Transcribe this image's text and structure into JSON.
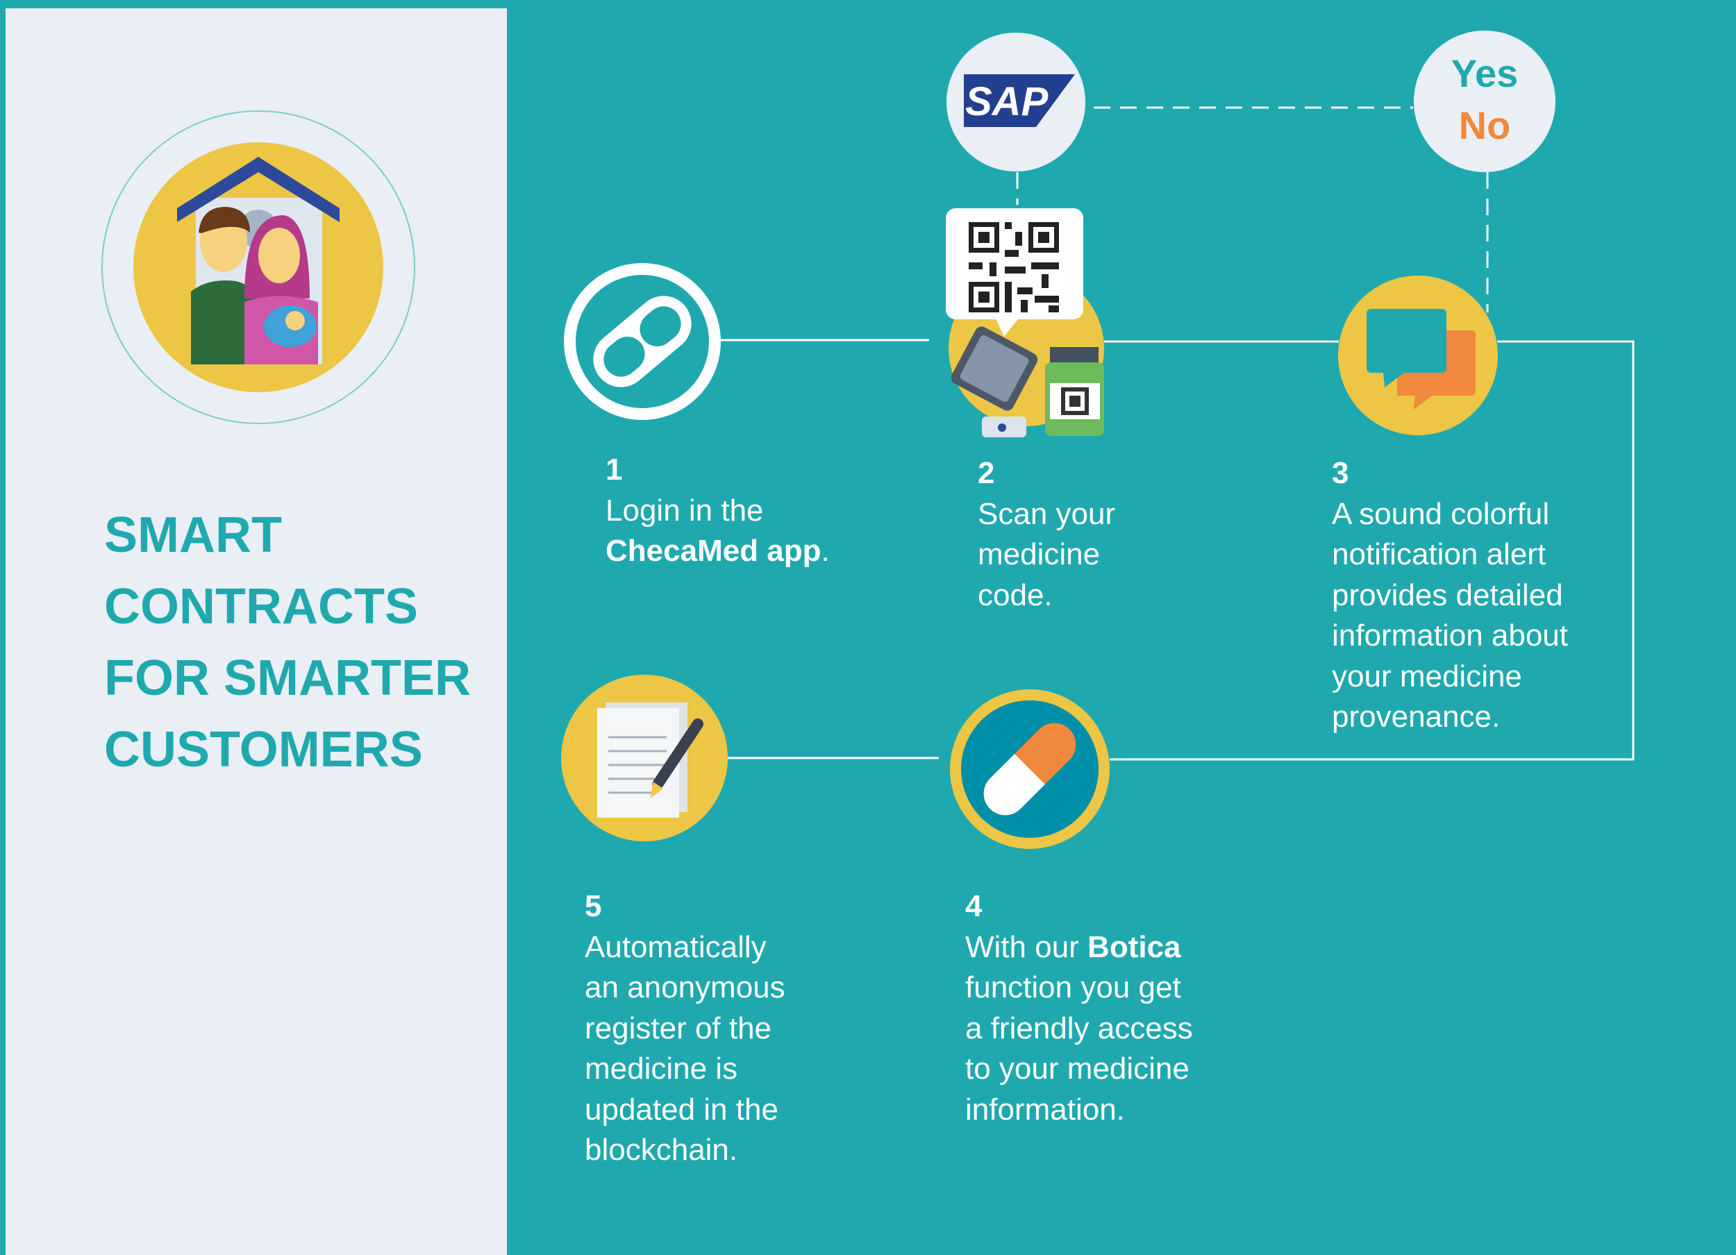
{
  "title": {
    "lines": [
      "SMART",
      "CONTRACTS",
      "FOR SMARTER",
      "CUSTOMERS"
    ]
  },
  "sap_logo_text": "SAP",
  "decision": {
    "yes": "Yes",
    "no": "No"
  },
  "steps": [
    {
      "number": "1",
      "lines": [
        "Login in the"
      ],
      "bold_line": {
        "bold": "ChecaMed app",
        "after": "."
      }
    },
    {
      "number": "2",
      "lines": [
        "Scan your",
        "medicine",
        "code."
      ]
    },
    {
      "number": "3",
      "lines": [
        "A sound colorful",
        "notification alert",
        "provides detailed",
        "information about",
        "your medicine",
        "provenance."
      ]
    },
    {
      "number": "4",
      "first_line": {
        "before": "With our ",
        "bold": "Botica"
      },
      "lines": [
        "function you get",
        "a friendly access",
        "to your medicine",
        "information."
      ]
    },
    {
      "number": "5",
      "lines": [
        "Automatically",
        "an anonymous",
        "register of the",
        "medicine is",
        "updated in the",
        "blockchain."
      ]
    }
  ],
  "colors": {
    "teal": "#1fa9ae",
    "panel": "#e9eff5",
    "yellow": "#f5c64a",
    "orange": "#f0883e",
    "navy": "#2a4a9b",
    "dark_teal": "#008fa8"
  },
  "icons": [
    "family-home-icon",
    "pill-capsule-icon",
    "sap-logo",
    "qr-code-icon",
    "phone-scan-icon",
    "medicine-bottle-icon",
    "chat-bubbles-icon",
    "yes-no-icon",
    "pill-icon",
    "document-pen-icon"
  ]
}
